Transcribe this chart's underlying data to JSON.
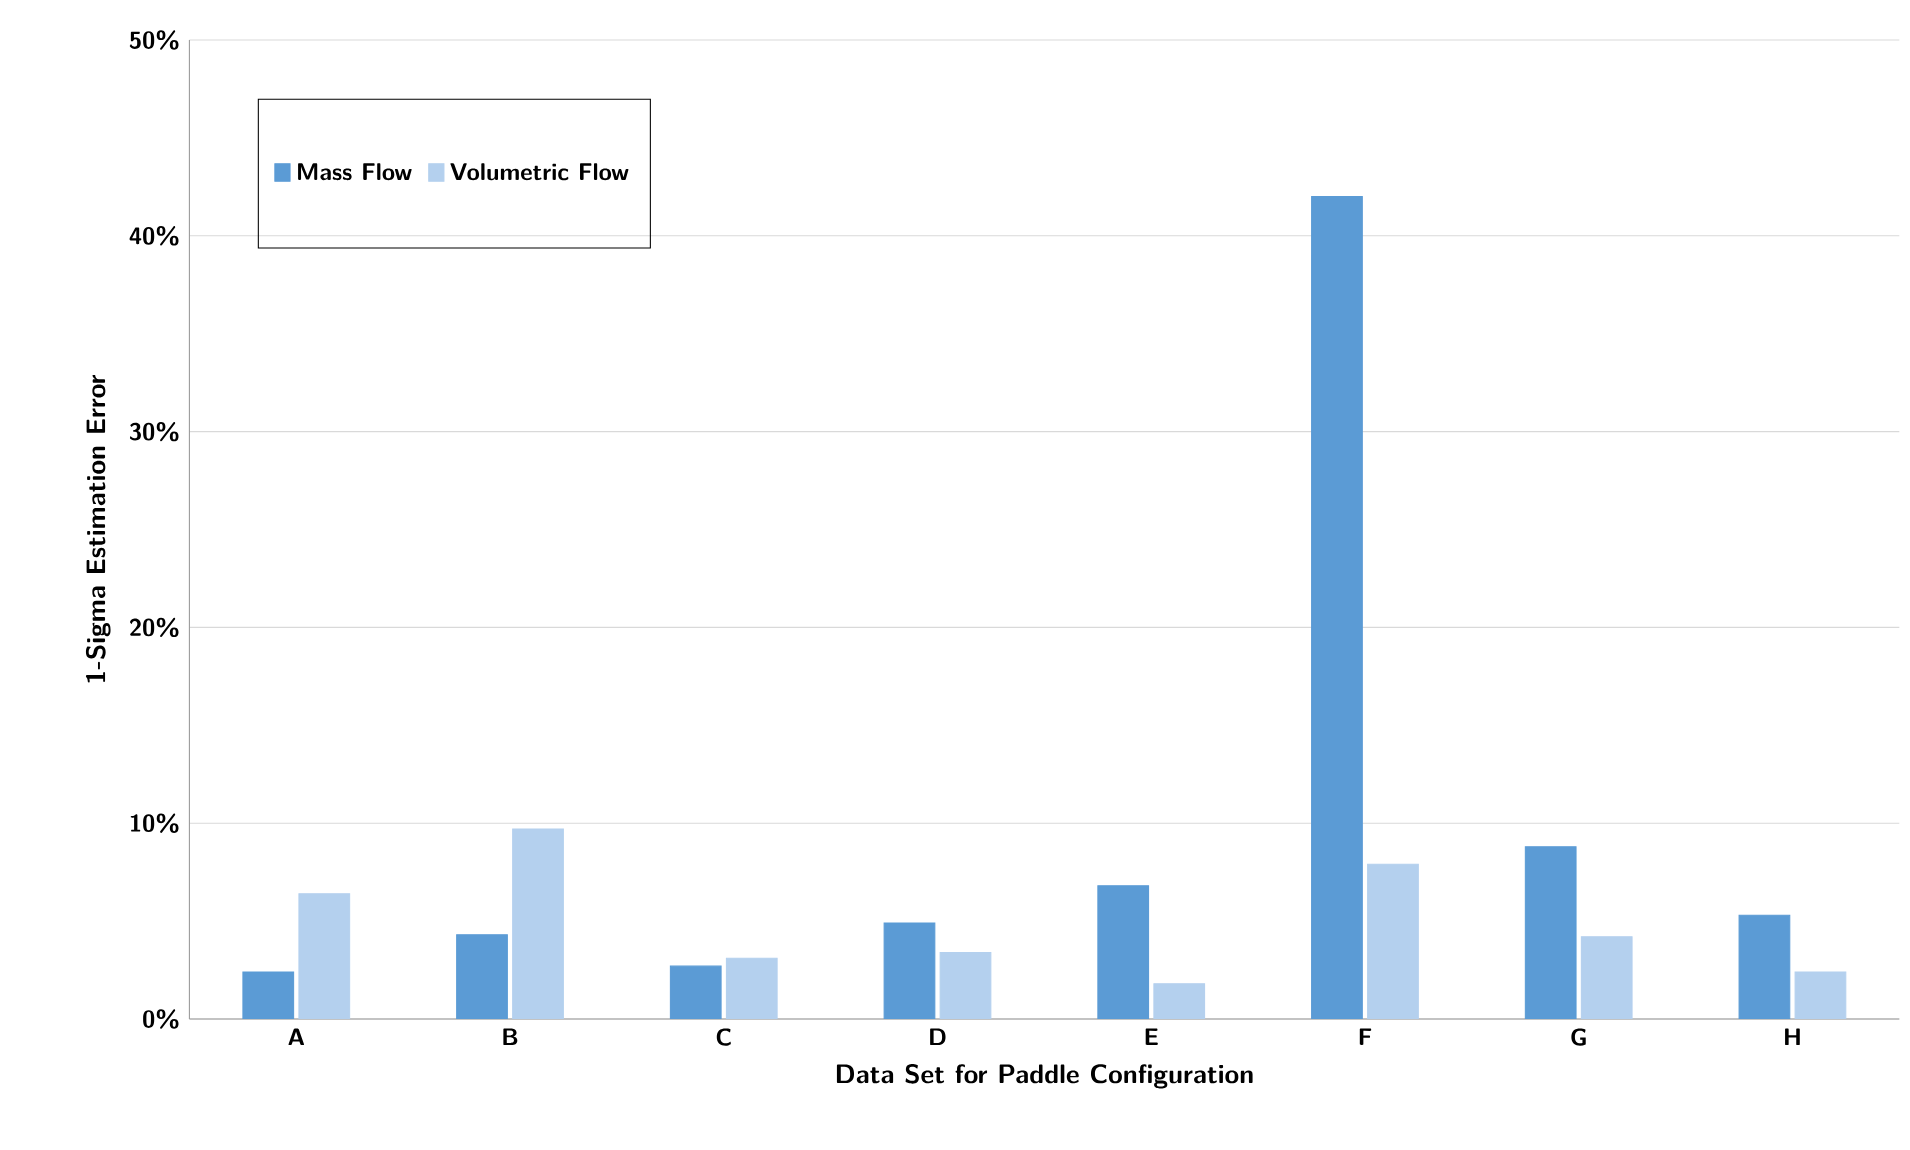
{
  "chart_data": {
    "type": "bar",
    "xlabel": "Data Set for Paddle Configuration",
    "ylabel": "1-Sigma Estimation Error",
    "categories": [
      "A",
      "B",
      "C",
      "D",
      "E",
      "F",
      "G",
      "H"
    ],
    "series": [
      {
        "name": "Mass Flow",
        "color": "#5b9bd5",
        "values": [
          2.4,
          4.3,
          2.7,
          4.9,
          6.8,
          42.0,
          8.8,
          5.3
        ]
      },
      {
        "name": "Volumetric Flow",
        "color": "#b4d0ee",
        "values": [
          6.4,
          9.7,
          3.1,
          3.4,
          1.8,
          7.9,
          4.2,
          2.4
        ]
      }
    ],
    "ylim": [
      0,
      50
    ],
    "yticks": [
      {
        "value": 0,
        "label": "0%"
      },
      {
        "value": 10,
        "label": "10%"
      },
      {
        "value": 20,
        "label": "20%"
      },
      {
        "value": 30,
        "label": "30%"
      },
      {
        "value": 40,
        "label": "40%"
      },
      {
        "value": 50,
        "label": "50%"
      }
    ],
    "grid": "y",
    "legend": "top left"
  }
}
